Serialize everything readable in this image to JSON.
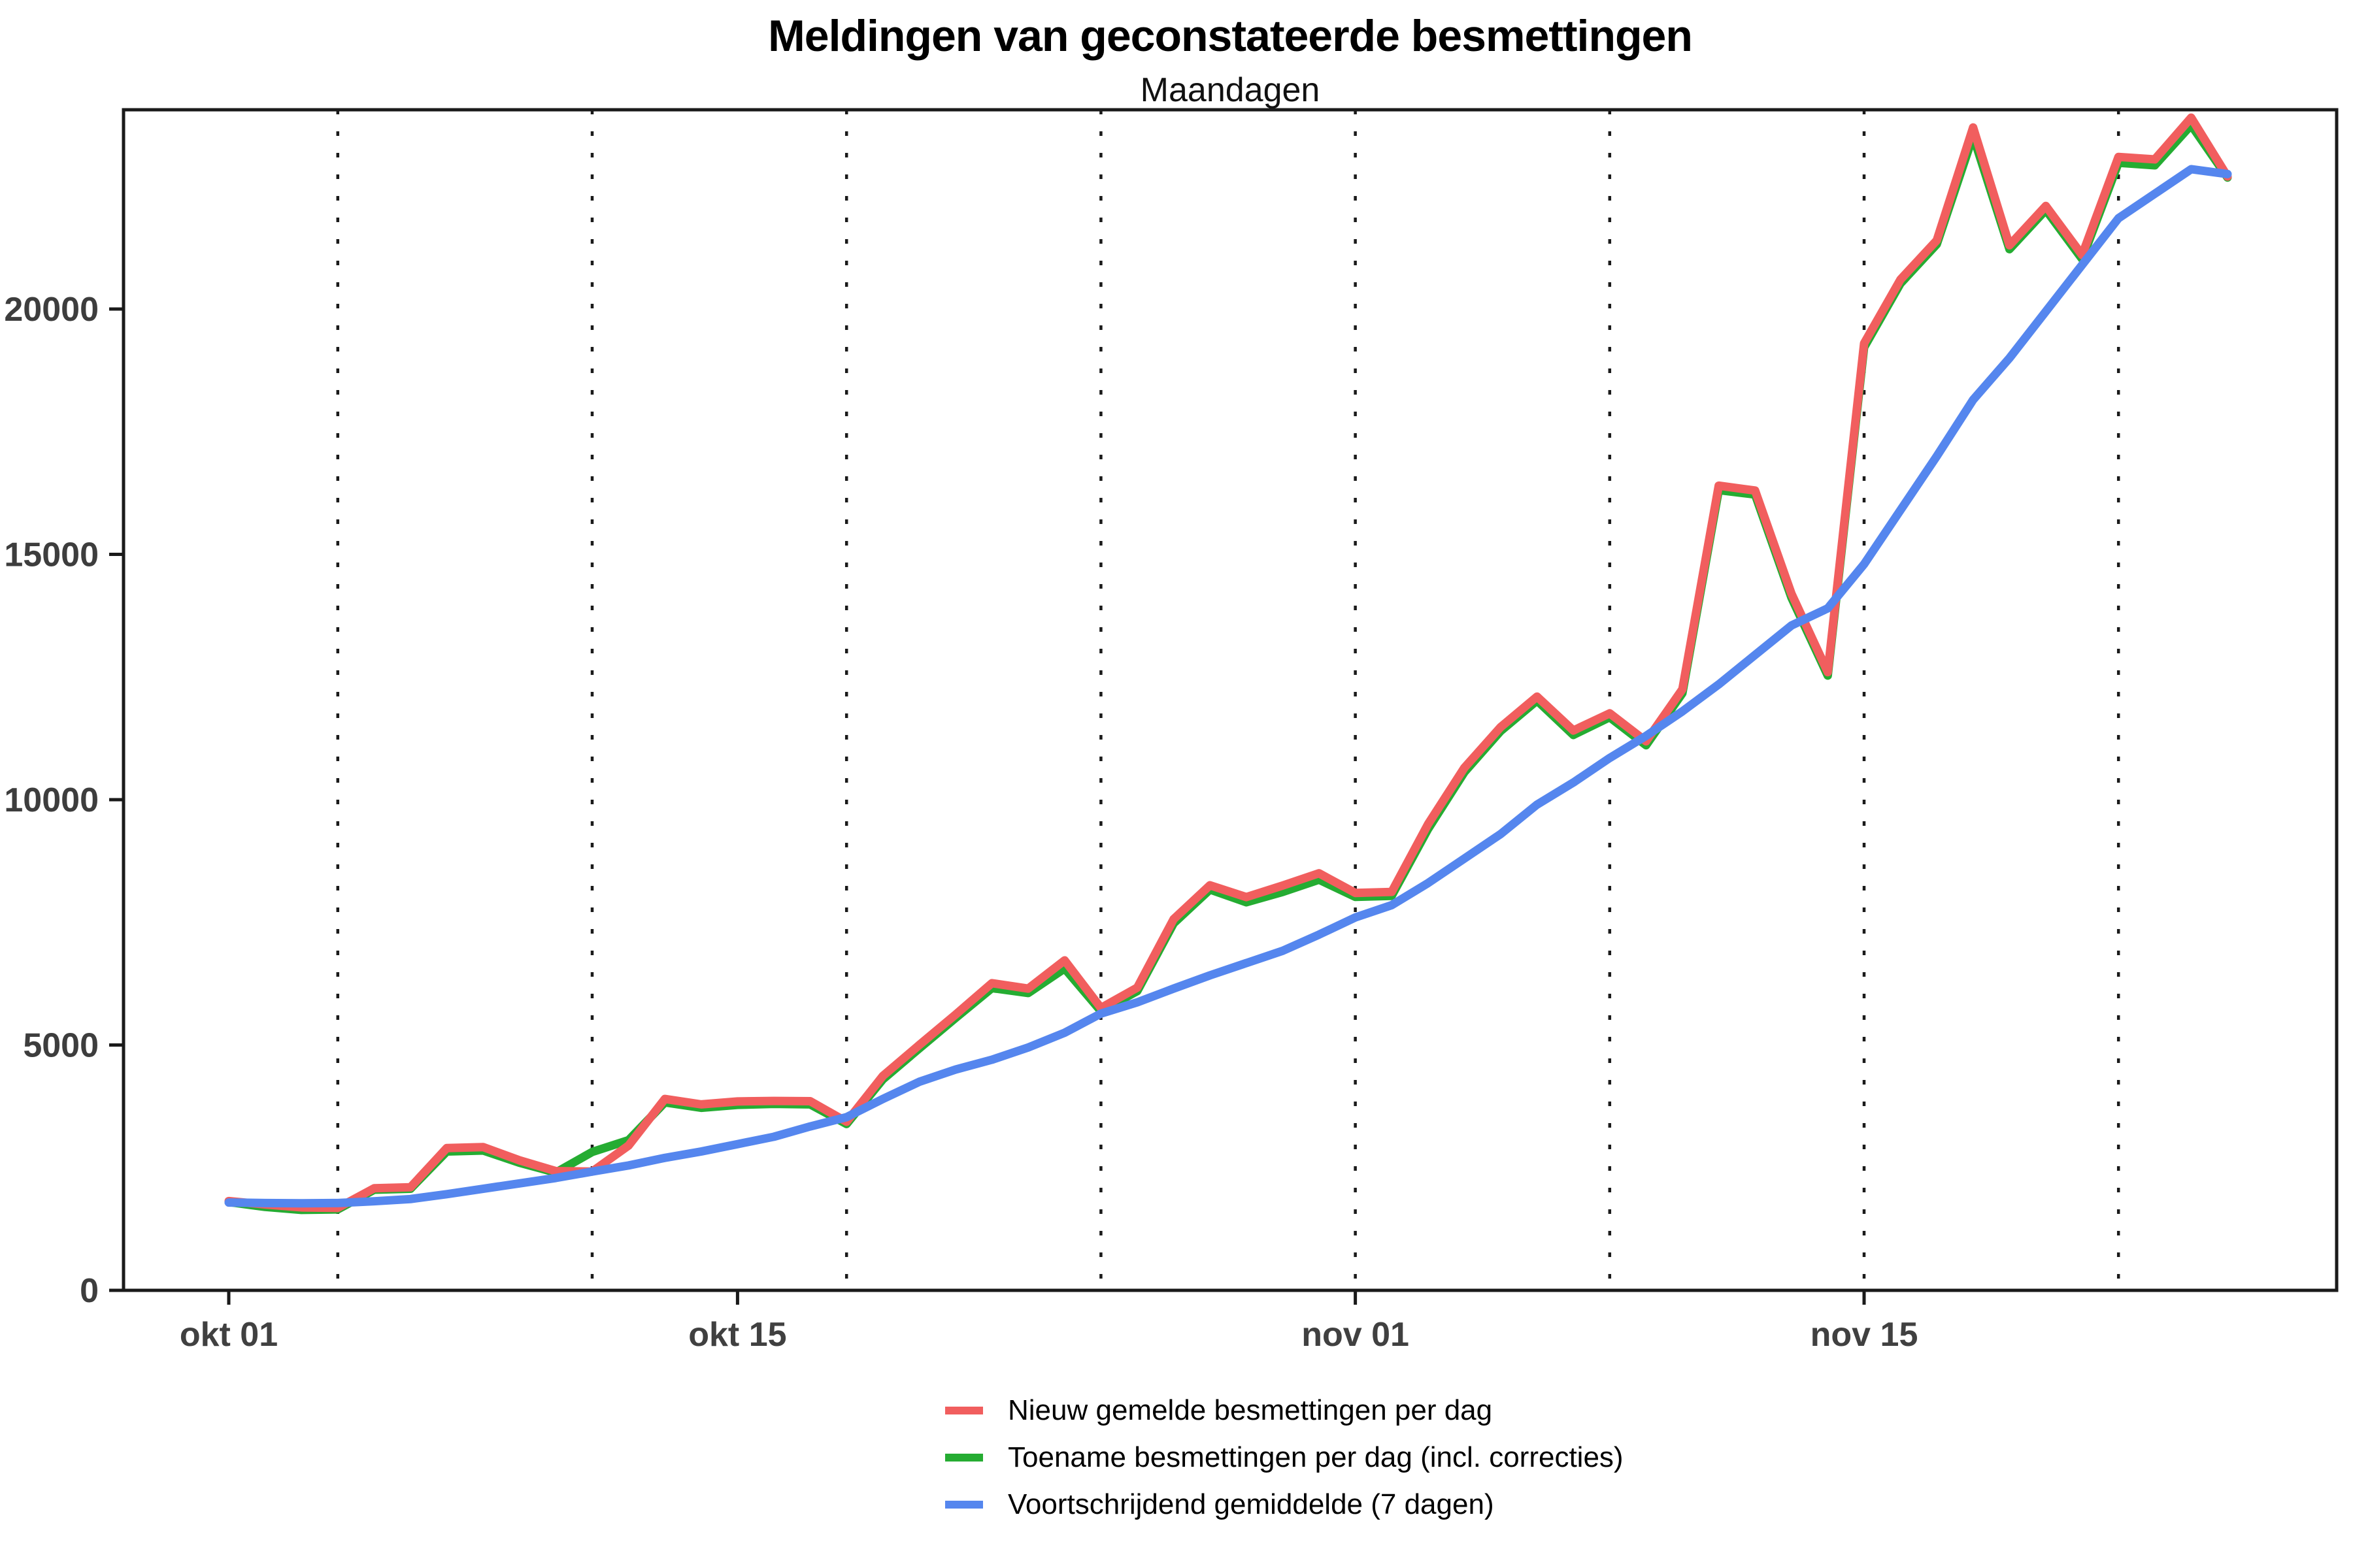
{
  "title": "Meldingen van geconstateerde besmettingen",
  "subtitle": "Maandagen",
  "chart_data": {
    "type": "line",
    "title": "Meldingen van geconstateerde besmettingen",
    "subtitle": "Maandagen",
    "xlabel": "",
    "ylabel": "",
    "ylim": [
      0,
      24000
    ],
    "y_ticks": [
      0,
      5000,
      10000,
      15000,
      20000
    ],
    "x_ticks": [
      {
        "label": "okt 01",
        "day": 0
      },
      {
        "label": "okt 15",
        "day": 14
      },
      {
        "label": "nov 01",
        "day": 31
      },
      {
        "label": "nov 15",
        "day": 45
      }
    ],
    "monday_gridline_days": [
      3,
      10,
      17,
      24,
      31,
      38,
      45,
      52
    ],
    "grid": "vertical dotted lines on Mondays",
    "legend_position": "bottom",
    "axis_color": "#1a1a1a",
    "tick_label_color": "#3d3d3d",
    "categories": [
      "okt 01",
      "okt 02",
      "okt 03",
      "okt 04",
      "okt 05",
      "okt 06",
      "okt 07",
      "okt 08",
      "okt 09",
      "okt 10",
      "okt 11",
      "okt 12",
      "okt 13",
      "okt 14",
      "okt 15",
      "okt 16",
      "okt 17",
      "okt 18",
      "okt 19",
      "okt 20",
      "okt 21",
      "okt 22",
      "okt 23",
      "okt 24",
      "okt 25",
      "okt 26",
      "okt 27",
      "okt 28",
      "okt 29",
      "okt 30",
      "okt 31",
      "nov 01",
      "nov 02",
      "nov 03",
      "nov 04",
      "nov 05",
      "nov 06",
      "nov 07",
      "nov 08",
      "nov 09",
      "nov 10",
      "nov 11",
      "nov 12",
      "nov 13",
      "nov 14",
      "nov 15",
      "nov 16",
      "nov 17",
      "nov 18",
      "nov 19",
      "nov 20",
      "nov 21",
      "nov 22",
      "nov 23",
      "nov 24",
      "nov 25"
    ],
    "series": [
      {
        "name": "Nieuw gemelde besmettingen per dag",
        "color": "#F15E5E",
        "values": [
          1820,
          1750,
          1690,
          1680,
          2080,
          2100,
          2900,
          2920,
          2650,
          2430,
          2420,
          2950,
          3900,
          3790,
          3850,
          3860,
          3855,
          3435,
          4370,
          5000,
          5620,
          6260,
          6150,
          6725,
          5755,
          6170,
          7565,
          8255,
          8015,
          8250,
          8500,
          8100,
          8120,
          9500,
          10650,
          11480,
          12100,
          11410,
          11760,
          11190,
          12250,
          16400,
          16300,
          14200,
          12600,
          19300,
          20600,
          21400,
          23700,
          21300,
          22100,
          21100,
          23100,
          23050,
          23900,
          22700
        ]
      },
      {
        "name": "Toename besmettingen per dag (incl. correcties)",
        "color": "#25AC32",
        "values": [
          1800,
          1700,
          1640,
          1650,
          2050,
          2070,
          2830,
          2850,
          2600,
          2400,
          2820,
          3060,
          3830,
          3720,
          3780,
          3800,
          3790,
          3390,
          4300,
          4930,
          5550,
          6160,
          6060,
          6560,
          5690,
          6100,
          7480,
          8170,
          7910,
          8120,
          8370,
          8020,
          8040,
          9400,
          10560,
          11400,
          12020,
          11320,
          11680,
          11110,
          12170,
          16310,
          16220,
          14120,
          12530,
          19220,
          20520,
          21320,
          23530,
          21220,
          22020,
          21020,
          22980,
          22930,
          23750,
          22680
        ]
      },
      {
        "name": "Voortschrijdend gemiddelde (7 dagen)",
        "color": "#5586EE",
        "values": [
          1790,
          1780,
          1775,
          1780,
          1815,
          1860,
          1960,
          2070,
          2180,
          2290,
          2420,
          2545,
          2700,
          2830,
          2980,
          3130,
          3340,
          3530,
          3900,
          4250,
          4500,
          4700,
          4950,
          5250,
          5640,
          5870,
          6150,
          6420,
          6670,
          6920,
          7250,
          7600,
          7850,
          8300,
          8800,
          9300,
          9900,
          10350,
          10850,
          11300,
          11800,
          12350,
          12950,
          13550,
          13900,
          14800,
          15900,
          17000,
          18150,
          19000,
          19950,
          20900,
          21850,
          22350,
          22850,
          22750
        ]
      }
    ],
    "draw_order": [
      1,
      0,
      2
    ],
    "line_width": 13
  },
  "legend": {
    "items": [
      {
        "label": "Nieuw gemelde besmettingen per dag"
      },
      {
        "label": "Toename besmettingen per dag (incl. correcties)"
      },
      {
        "label": "Voortschrijdend gemiddelde (7 dagen)"
      }
    ]
  }
}
